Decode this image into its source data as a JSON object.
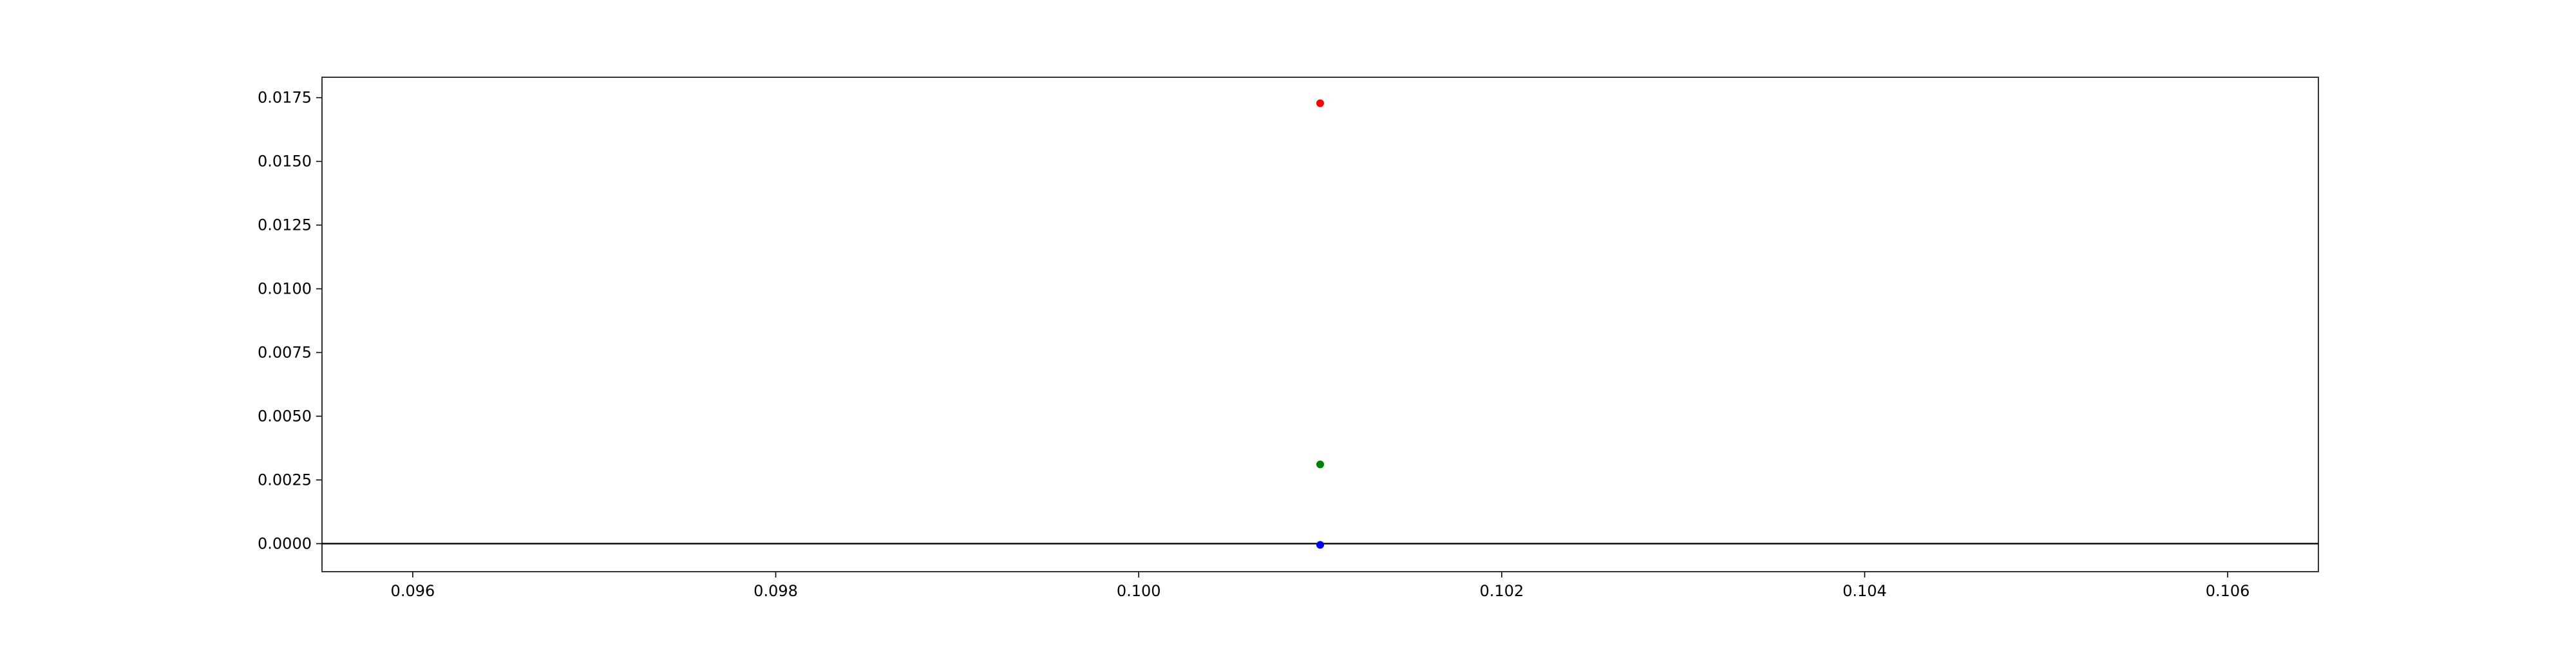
{
  "chart_data": {
    "type": "scatter",
    "title": "",
    "xlabel": "",
    "ylabel": "",
    "xlim": [
      0.0955,
      0.1065
    ],
    "ylim": [
      -0.0011,
      0.0183
    ],
    "x_ticks": [
      0.096,
      0.098,
      0.1,
      0.102,
      0.104,
      0.106
    ],
    "x_tick_labels": [
      "0.096",
      "0.098",
      "0.100",
      "0.102",
      "0.104",
      "0.106"
    ],
    "y_ticks": [
      0.0,
      0.0025,
      0.005,
      0.0075,
      0.01,
      0.0125,
      0.015,
      0.0175
    ],
    "y_tick_labels": [
      "0.0000",
      "0.0025",
      "0.0050",
      "0.0075",
      "0.0100",
      "0.0125",
      "0.0150",
      "0.0175"
    ],
    "grid": false,
    "reference_lines": [
      {
        "orientation": "horizontal",
        "y": 0.0,
        "color": "#000000"
      }
    ],
    "points": [
      {
        "x": 0.101,
        "y": 0.01728,
        "color": "#ff0000"
      },
      {
        "x": 0.101,
        "y": 0.00311,
        "color": "#008000"
      },
      {
        "x": 0.101,
        "y": -5e-05,
        "color": "#0000ff"
      }
    ]
  }
}
